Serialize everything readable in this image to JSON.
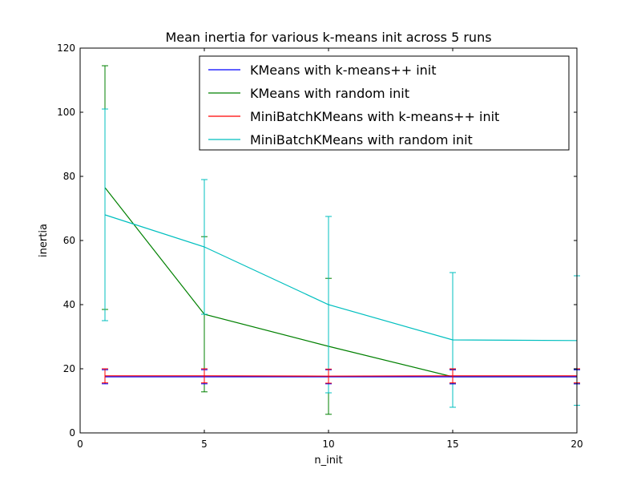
{
  "chart_data": {
    "type": "line",
    "title": "Mean inertia for various k-means init across 5 runs",
    "xlabel": "n_init",
    "ylabel": "inertia",
    "xlim": [
      0,
      20
    ],
    "ylim": [
      0,
      120
    ],
    "xticks": [
      0,
      5,
      10,
      15,
      20
    ],
    "yticks": [
      0,
      20,
      40,
      60,
      80,
      100,
      120
    ],
    "grid": false,
    "legend_position": "top-right",
    "x": [
      1,
      5,
      10,
      15,
      20
    ],
    "series": [
      {
        "name": "KMeans with k-means++ init",
        "color": "#0000ff",
        "values": [
          17.5,
          17.5,
          17.5,
          17.5,
          17.5
        ],
        "errors": [
          2.2,
          2.2,
          2.2,
          2.2,
          2.2
        ]
      },
      {
        "name": "KMeans with random init",
        "color": "#008000",
        "values": [
          76.5,
          37.0,
          27.0,
          17.5,
          17.5
        ],
        "errors": [
          38.0,
          24.2,
          21.2,
          2.2,
          2.2
        ]
      },
      {
        "name": "MiniBatchKMeans with k-means++ init",
        "color": "#ff0000",
        "values": [
          17.8,
          17.8,
          17.7,
          17.8,
          17.8
        ],
        "errors": [
          2.2,
          2.2,
          2.2,
          2.2,
          2.2
        ]
      },
      {
        "name": "MiniBatchKMeans with random init",
        "color": "#00bfbf",
        "values": [
          68.0,
          58.0,
          40.0,
          29.0,
          28.8
        ],
        "errors": [
          33.0,
          21.0,
          27.5,
          21.0,
          20.2
        ]
      }
    ]
  }
}
